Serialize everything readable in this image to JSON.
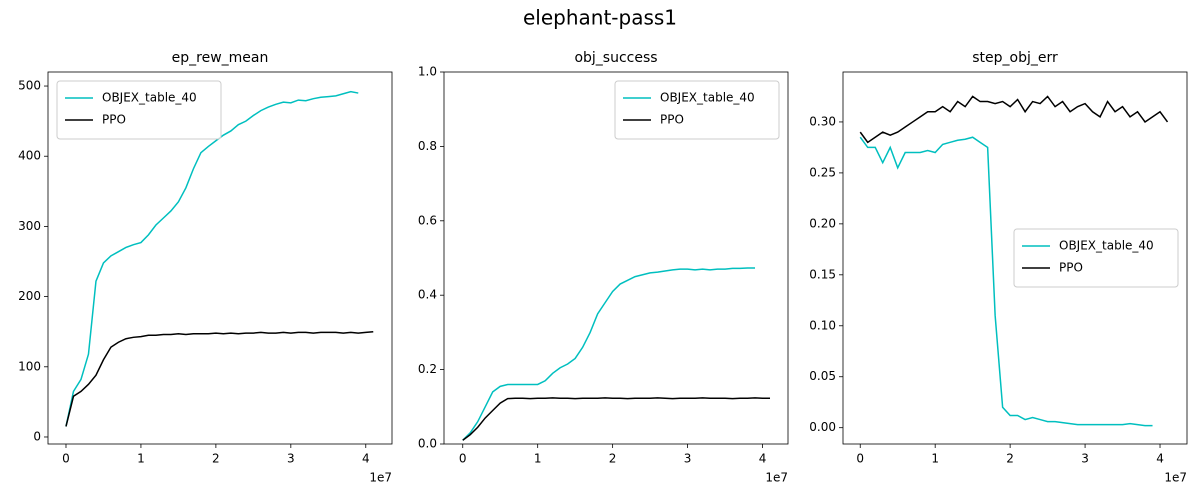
{
  "title": "elephant-pass1",
  "chart_data": [
    {
      "type": "line",
      "title": "ep_rew_mean",
      "x_offset_label": "1e7",
      "legend_loc": "upper left",
      "x": [
        0,
        0.1,
        0.2,
        0.3,
        0.4,
        0.5,
        0.6,
        0.7,
        0.8,
        0.9,
        1.0,
        1.1,
        1.2,
        1.3,
        1.4,
        1.5,
        1.6,
        1.7,
        1.8,
        1.9,
        2.0,
        2.1,
        2.2,
        2.3,
        2.4,
        2.5,
        2.6,
        2.7,
        2.8,
        2.9,
        3.0,
        3.1,
        3.2,
        3.3,
        3.4,
        3.5,
        3.6,
        3.7,
        3.8,
        3.9,
        4.0,
        4.1
      ],
      "xlim": [
        -0.24,
        4.35
      ],
      "xticks": [
        0,
        1,
        2,
        3,
        4
      ],
      "ylim": [
        -10,
        520
      ],
      "yticks": [
        0,
        100,
        200,
        300,
        400,
        500
      ],
      "series": [
        {
          "name": "OBJEX_table_40",
          "color": "#00bfbf",
          "values": [
            15,
            65,
            82,
            118,
            222,
            248,
            258,
            264,
            270,
            274,
            277,
            288,
            302,
            312,
            322,
            335,
            355,
            382,
            405,
            414,
            422,
            430,
            436,
            445,
            450,
            458,
            465,
            470,
            474,
            477,
            476,
            480,
            479,
            482,
            484,
            485,
            486,
            489,
            492,
            490,
            null,
            null
          ]
        },
        {
          "name": "PPO",
          "color": "#000000",
          "values": [
            15,
            58,
            65,
            75,
            88,
            110,
            128,
            135,
            140,
            142,
            143,
            145,
            145,
            146,
            146,
            147,
            146,
            147,
            147,
            147,
            148,
            147,
            148,
            147,
            148,
            148,
            149,
            148,
            148,
            149,
            148,
            149,
            149,
            148,
            149,
            149,
            149,
            148,
            149,
            148,
            149,
            150
          ]
        }
      ]
    },
    {
      "type": "line",
      "title": "obj_success",
      "x_offset_label": "1e7",
      "legend_loc": "upper right",
      "x": [
        0,
        0.1,
        0.2,
        0.3,
        0.4,
        0.5,
        0.6,
        0.7,
        0.8,
        0.9,
        1.0,
        1.1,
        1.2,
        1.3,
        1.4,
        1.5,
        1.6,
        1.7,
        1.8,
        1.9,
        2.0,
        2.1,
        2.2,
        2.3,
        2.4,
        2.5,
        2.6,
        2.7,
        2.8,
        2.9,
        3.0,
        3.1,
        3.2,
        3.3,
        3.4,
        3.5,
        3.6,
        3.7,
        3.8,
        3.9,
        4.0,
        4.1
      ],
      "xlim": [
        -0.25,
        4.34
      ],
      "xticks": [
        0,
        1,
        2,
        3,
        4
      ],
      "ylim": [
        0,
        1
      ],
      "yticks": [
        {
          "value": 0,
          "label": "0.0"
        },
        0.2,
        0.4,
        0.6,
        0.8,
        {
          "value": 1,
          "label": "1.0"
        }
      ],
      "series": [
        {
          "name": "OBJEX_table_40",
          "color": "#00bfbf",
          "values": [
            0.01,
            0.03,
            0.06,
            0.1,
            0.14,
            0.155,
            0.16,
            0.16,
            0.16,
            0.16,
            0.16,
            0.17,
            0.19,
            0.205,
            0.215,
            0.23,
            0.26,
            0.3,
            0.35,
            0.38,
            0.41,
            0.43,
            0.44,
            0.45,
            0.455,
            0.46,
            0.462,
            0.465,
            0.468,
            0.47,
            0.47,
            0.468,
            0.47,
            0.468,
            0.47,
            0.47,
            0.472,
            0.472,
            0.473,
            0.473,
            null,
            null
          ]
        },
        {
          "name": "PPO",
          "color": "#000000",
          "values": [
            0.01,
            0.025,
            0.045,
            0.07,
            0.09,
            0.11,
            0.122,
            0.123,
            0.123,
            0.122,
            0.123,
            0.123,
            0.124,
            0.123,
            0.123,
            0.122,
            0.123,
            0.123,
            0.123,
            0.124,
            0.123,
            0.123,
            0.122,
            0.123,
            0.123,
            0.123,
            0.124,
            0.123,
            0.122,
            0.123,
            0.123,
            0.123,
            0.124,
            0.123,
            0.123,
            0.123,
            0.122,
            0.123,
            0.123,
            0.124,
            0.123,
            0.123
          ]
        }
      ]
    },
    {
      "type": "line",
      "title": "step_obj_err",
      "x_offset_label": "1e7",
      "legend_loc": "center right",
      "x": [
        0,
        0.1,
        0.2,
        0.3,
        0.4,
        0.5,
        0.6,
        0.7,
        0.8,
        0.9,
        1.0,
        1.1,
        1.2,
        1.3,
        1.4,
        1.5,
        1.6,
        1.7,
        1.8,
        1.9,
        2.0,
        2.1,
        2.2,
        2.3,
        2.4,
        2.5,
        2.6,
        2.7,
        2.8,
        2.9,
        3.0,
        3.1,
        3.2,
        3.3,
        3.4,
        3.5,
        3.6,
        3.7,
        3.8,
        3.9,
        4.0,
        4.1
      ],
      "xlim": [
        -0.23,
        4.36
      ],
      "xticks": [
        0,
        1,
        2,
        3,
        4
      ],
      "ylim": [
        -0.016,
        0.349
      ],
      "yticks": [
        {
          "value": 0,
          "label": "0.00"
        },
        0.05,
        {
          "value": 0.1,
          "label": "0.10"
        },
        0.15,
        {
          "value": 0.2,
          "label": "0.20"
        },
        0.25,
        {
          "value": 0.3,
          "label": "0.30"
        }
      ],
      "series": [
        {
          "name": "OBJEX_table_40",
          "color": "#00bfbf",
          "values": [
            0.285,
            0.275,
            0.275,
            0.26,
            0.275,
            0.255,
            0.27,
            0.27,
            0.27,
            0.272,
            0.27,
            0.278,
            0.28,
            0.282,
            0.283,
            0.285,
            0.28,
            0.275,
            0.11,
            0.02,
            0.012,
            0.012,
            0.008,
            0.01,
            0.008,
            0.006,
            0.006,
            0.005,
            0.004,
            0.003,
            0.003,
            0.003,
            0.003,
            0.003,
            0.003,
            0.003,
            0.004,
            0.003,
            0.002,
            0.002,
            null,
            null
          ]
        },
        {
          "name": "PPO",
          "color": "#000000",
          "values": [
            0.29,
            0.28,
            0.285,
            0.29,
            0.287,
            0.29,
            0.295,
            0.3,
            0.305,
            0.31,
            0.31,
            0.315,
            0.31,
            0.32,
            0.315,
            0.325,
            0.32,
            0.32,
            0.318,
            0.32,
            0.315,
            0.322,
            0.31,
            0.32,
            0.318,
            0.325,
            0.315,
            0.32,
            0.31,
            0.315,
            0.318,
            0.31,
            0.305,
            0.32,
            0.31,
            0.315,
            0.305,
            0.31,
            0.3,
            0.305,
            0.31,
            0.3
          ]
        }
      ]
    }
  ]
}
